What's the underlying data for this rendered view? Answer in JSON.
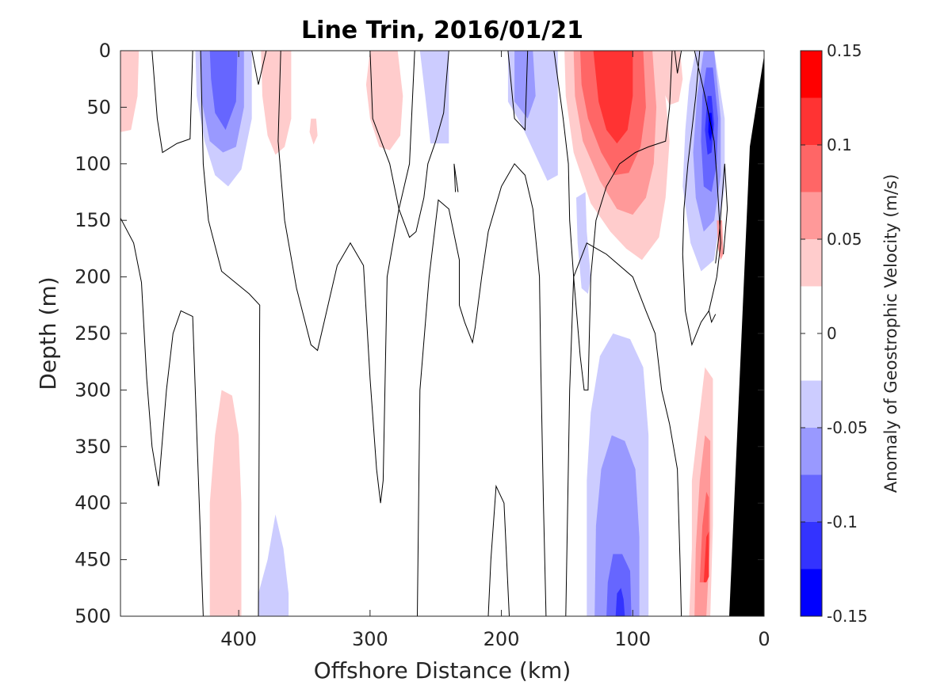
{
  "chart_data": {
    "type": "heatmap",
    "subtype": "filled-contour",
    "title": "Line Trin, 2016/01/21",
    "xlabel": "Offshore Distance (km)",
    "ylabel": "Depth (m)",
    "xlim": [
      490,
      0
    ],
    "ylim": [
      0,
      500
    ],
    "x_reversed": true,
    "y_reversed": true,
    "xticks": [
      400,
      300,
      200,
      100,
      0
    ],
    "xtick_labels": [
      "400",
      "300",
      "200",
      "100",
      "0"
    ],
    "yticks": [
      0,
      50,
      100,
      150,
      200,
      250,
      300,
      350,
      400,
      450,
      500
    ],
    "ytick_labels": [
      "0",
      "50",
      "100",
      "150",
      "200",
      "250",
      "300",
      "350",
      "400",
      "450",
      "500"
    ],
    "colorbar": {
      "label": "Anomaly of Geostrophic Velocity (m/s)",
      "range": [
        -0.15,
        0.15
      ],
      "levels": [
        -0.15,
        -0.125,
        -0.1,
        -0.075,
        -0.05,
        -0.025,
        0,
        0.025,
        0.05,
        0.075,
        0.1,
        0.125,
        0.15
      ],
      "colors": [
        "#0000ff",
        "#3333ff",
        "#6666ff",
        "#9999ff",
        "#ccccff",
        "#ffffff",
        "#ffffff",
        "#ffcccc",
        "#ff9999",
        "#ff6666",
        "#ff3333",
        "#ff0000"
      ],
      "ticks": [
        0.15,
        0.1,
        0.05,
        0,
        -0.05,
        -0.1,
        -0.15
      ],
      "tick_labels": [
        "0.15",
        "0.1",
        "0.05",
        "0",
        "-0.05",
        "-0.1",
        "-0.15"
      ]
    },
    "grid": false,
    "bathymetry_color": "#000000",
    "features": [
      {
        "name": "anomaly-peak-nearshore-positive",
        "x_km": 115,
        "depth_m": 60,
        "value": 0.125
      },
      {
        "name": "anomaly-peak-shelf-negative",
        "x_km": 42,
        "depth_m": 60,
        "value": -0.125
      },
      {
        "name": "anomaly-peak-deep-negative",
        "x_km": 110,
        "depth_m": 480,
        "value": -0.1
      },
      {
        "name": "anomaly-peak-deep-positive",
        "x_km": 45,
        "depth_m": 460,
        "value": 0.1
      },
      {
        "name": "anomaly-peak-offshore-negative",
        "x_km": 410,
        "depth_m": 40,
        "value": -0.075
      },
      {
        "name": "anomaly-peak-offshore-positive",
        "x_km": 410,
        "depth_m": 400,
        "value": 0.025
      }
    ]
  }
}
